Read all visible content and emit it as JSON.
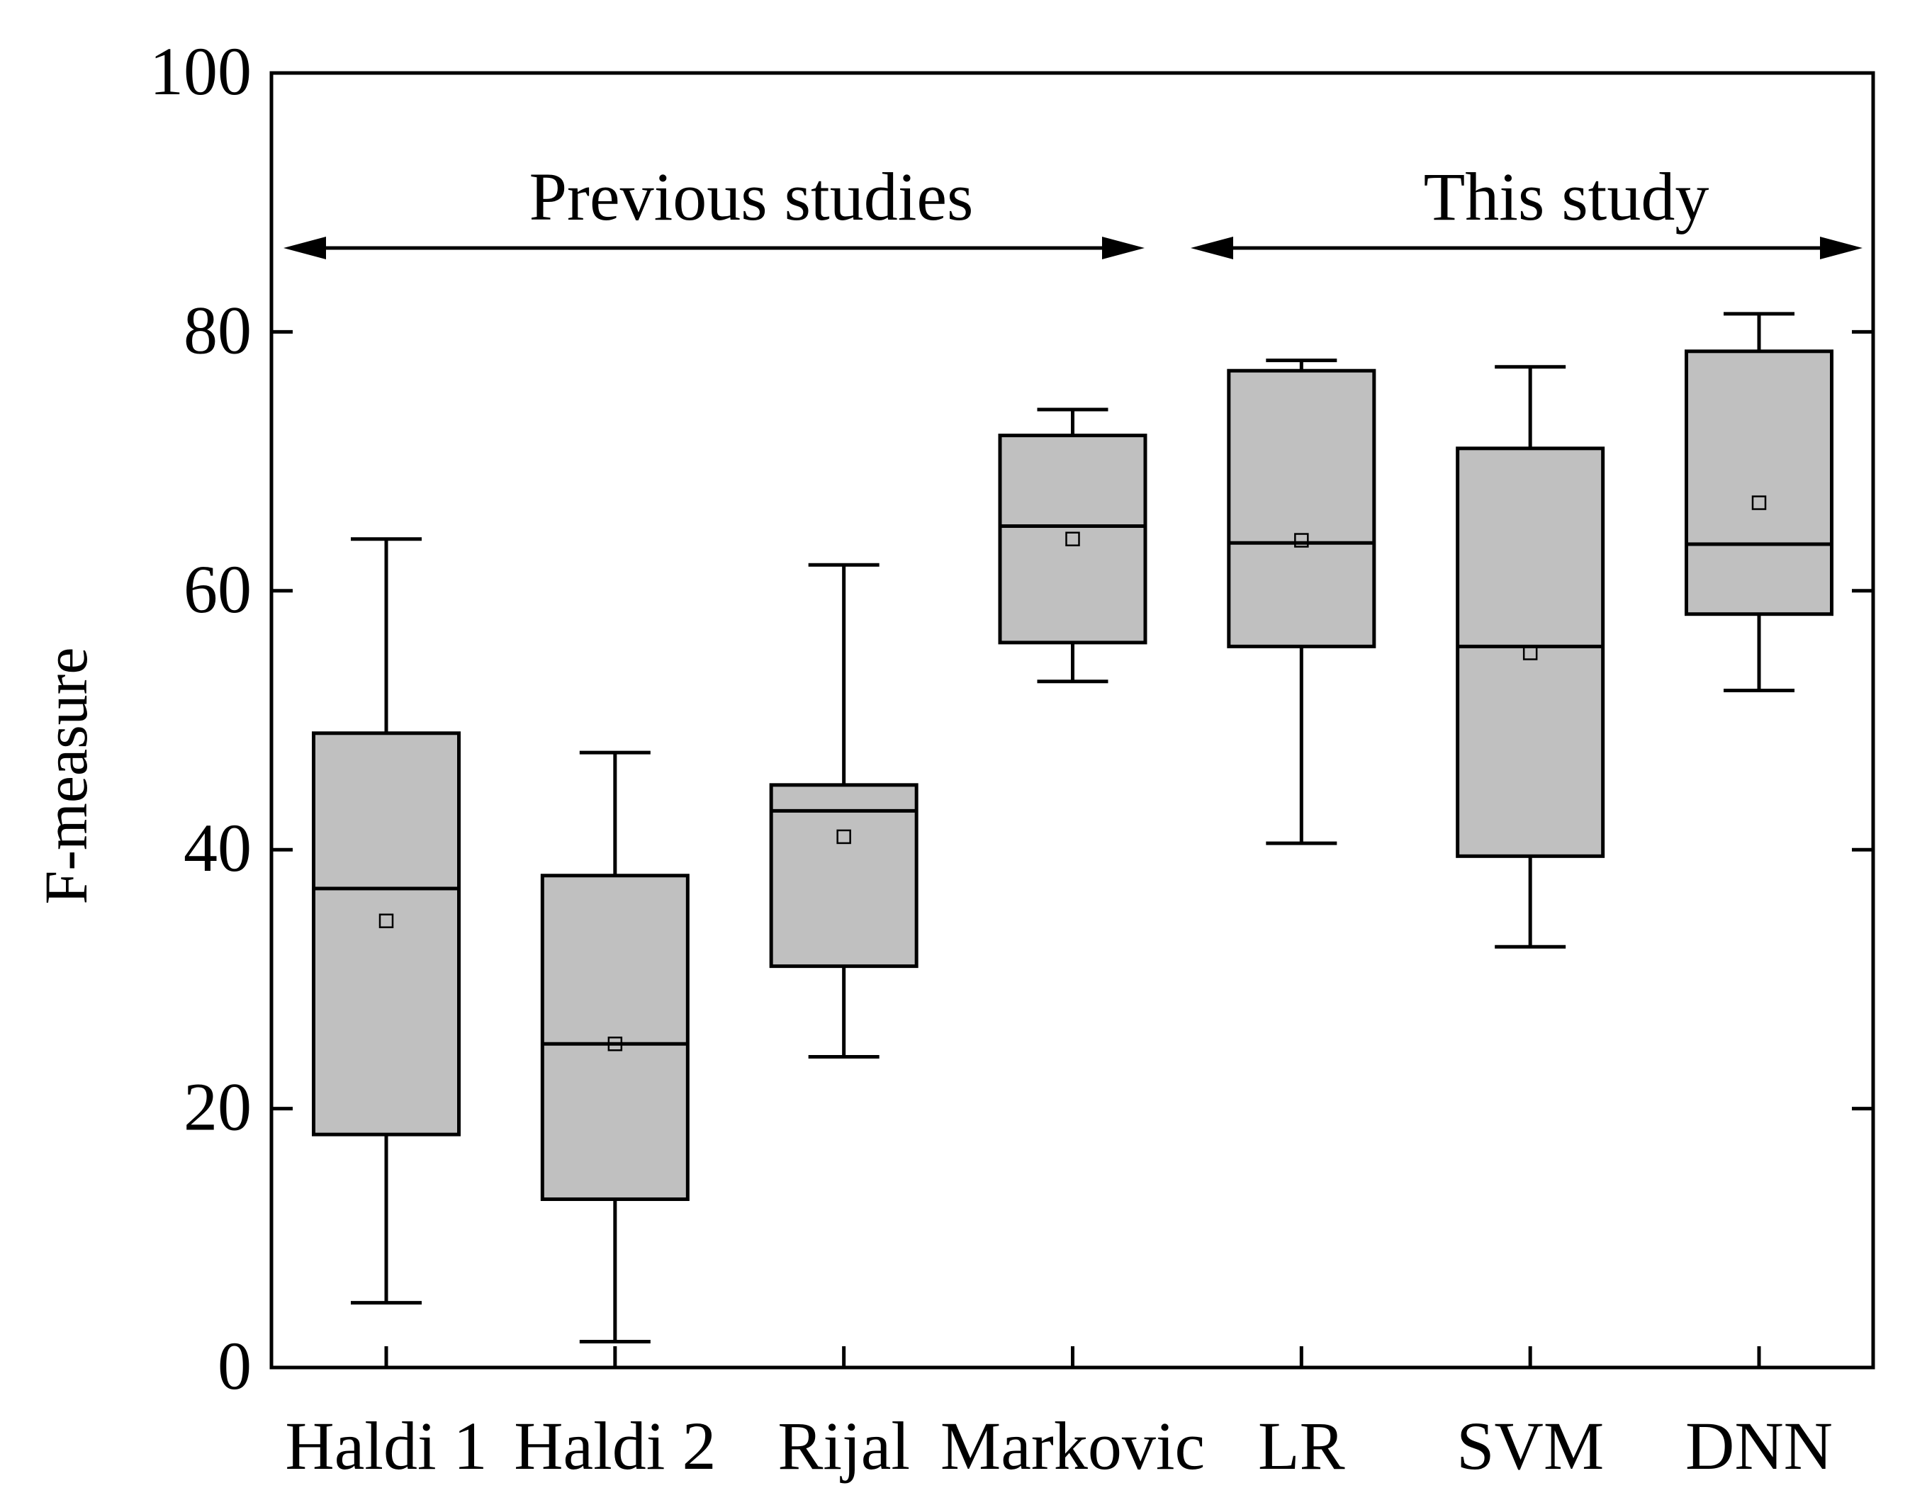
{
  "chart_data": {
    "type": "box",
    "title": "",
    "xlabel": "",
    "ylabel": "F-measure",
    "ylim": [
      0,
      100
    ],
    "yticks": [
      "0",
      "20",
      "40",
      "60",
      "80",
      "100"
    ],
    "categories": [
      "Haldi 1",
      "Haldi 2",
      "Rijal",
      "Markovic",
      "LR",
      "SVM",
      "DNN"
    ],
    "boxes": [
      {
        "name": "Haldi 1",
        "whisker_low": 5,
        "q1": 18,
        "median": 37,
        "q3": 49,
        "whisker_high": 64,
        "mean": 34.5
      },
      {
        "name": "Haldi 2",
        "whisker_low": 2,
        "q1": 13,
        "median": 25,
        "q3": 38,
        "whisker_high": 47.5,
        "mean": 25
      },
      {
        "name": "Rijal",
        "whisker_low": 24,
        "q1": 31,
        "median": 43,
        "q3": 45,
        "whisker_high": 62,
        "mean": 41
      },
      {
        "name": "Markovic",
        "whisker_low": 53,
        "q1": 56,
        "median": 65,
        "q3": 72,
        "whisker_high": 74,
        "mean": 64
      },
      {
        "name": "LR",
        "whisker_low": 40.5,
        "q1": 55.7,
        "median": 63.7,
        "q3": 77,
        "whisker_high": 77.8,
        "mean": 63.9
      },
      {
        "name": "SVM",
        "whisker_low": 32.5,
        "q1": 39.5,
        "median": 55.7,
        "q3": 71,
        "whisker_high": 77.3,
        "mean": 55.2
      },
      {
        "name": "DNN",
        "whisker_low": 52.3,
        "q1": 58.2,
        "median": 63.6,
        "q3": 78.5,
        "whisker_high": 81.4,
        "mean": 66.8
      }
    ],
    "annotations": [
      {
        "text": "Previous studies",
        "from_category": 0,
        "to_category": 3
      },
      {
        "text": "This study",
        "from_category": 4,
        "to_category": 6
      }
    ],
    "box_fill": "#c0c0c0",
    "line_color": "#000000",
    "grid": false
  }
}
